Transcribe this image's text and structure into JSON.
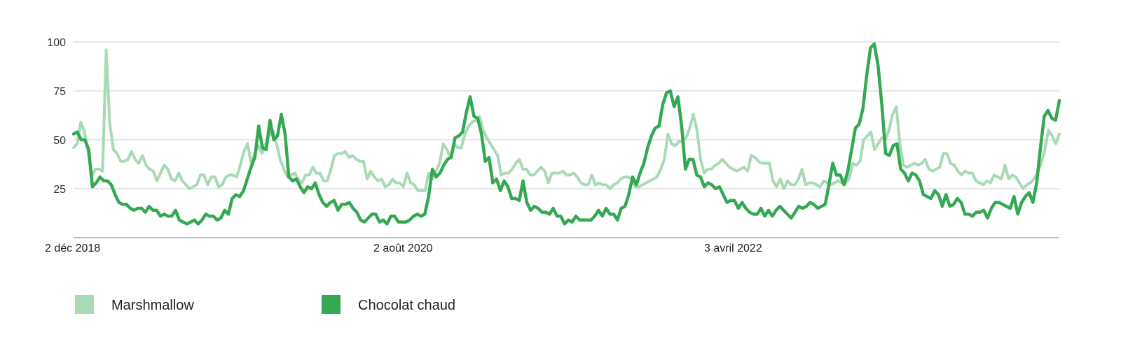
{
  "chart_data": {
    "type": "line",
    "title": "",
    "xlabel": "",
    "ylabel": "",
    "ylim": [
      0,
      100
    ],
    "yticks": [
      25,
      50,
      75,
      100
    ],
    "grid": true,
    "legend_position": "bottom-left",
    "x_tick_labels": [
      "2 déc 2018",
      "2 août 2020",
      "3 avril 2022"
    ],
    "series": [
      {
        "name": "Marshmallow",
        "color": "#a8dab5",
        "values": [
          46,
          48,
          59,
          54,
          44,
          31,
          35,
          35,
          34,
          96,
          58,
          45,
          43,
          39,
          39,
          40,
          44,
          40,
          38,
          42,
          37,
          35,
          34,
          29,
          33,
          37,
          35,
          30,
          29,
          33,
          29,
          27,
          25,
          26,
          27,
          32,
          32,
          27,
          31,
          31,
          26,
          27,
          31,
          32,
          32,
          31,
          37,
          44,
          48,
          38,
          43,
          47,
          43,
          48,
          52,
          55,
          48,
          40,
          35,
          31,
          32,
          33,
          30,
          28,
          32,
          32,
          36,
          33,
          33,
          29,
          29,
          35,
          42,
          43,
          43,
          44,
          41,
          42,
          40,
          39,
          39,
          30,
          34,
          31,
          29,
          30,
          26,
          27,
          30,
          28,
          28,
          26,
          33,
          28,
          27,
          24,
          24,
          24,
          33,
          30,
          34,
          38,
          48,
          45,
          41,
          48,
          46,
          46,
          53,
          57,
          59,
          60,
          62,
          55,
          51,
          48,
          45,
          42,
          32,
          33,
          33,
          35,
          38,
          40,
          35,
          35,
          32,
          32,
          34,
          36,
          34,
          28,
          33,
          33,
          33,
          34,
          32,
          32,
          33,
          31,
          28,
          27,
          27,
          32,
          27,
          28,
          27,
          27,
          25,
          27,
          28,
          30,
          31,
          31,
          30,
          26,
          26,
          27,
          28,
          29,
          30,
          31,
          35,
          40,
          53,
          48,
          47,
          49,
          49,
          51,
          56,
          63,
          55,
          40,
          33,
          35,
          35,
          37,
          38,
          40,
          38,
          36,
          35,
          34,
          35,
          36,
          34,
          42,
          41,
          39,
          38,
          38,
          38,
          29,
          26,
          30,
          25,
          29,
          27,
          27,
          30,
          35,
          27,
          28,
          28,
          27,
          26,
          29,
          28,
          27,
          28,
          29,
          28,
          28,
          30,
          38,
          37,
          39,
          50,
          52,
          54,
          45,
          48,
          51,
          50,
          55,
          63,
          67,
          48,
          37,
          36,
          37,
          38,
          37,
          38,
          40,
          35,
          34,
          35,
          36,
          43,
          43,
          38,
          37,
          34,
          32,
          34,
          33,
          33,
          29,
          28,
          27,
          29,
          28,
          32,
          31,
          30,
          37,
          30,
          32,
          31,
          28,
          25,
          27,
          28,
          30,
          33,
          38,
          45,
          55,
          52,
          48,
          53
        ]
      },
      {
        "name": "Chocolat chaud",
        "color": "#34a853",
        "values": [
          53,
          54,
          50,
          50,
          45,
          26,
          28,
          31,
          29,
          29,
          27,
          22,
          18,
          17,
          17,
          15,
          14,
          15,
          15,
          13,
          16,
          14,
          14,
          11,
          12,
          11,
          11,
          14,
          9,
          8,
          7,
          8,
          9,
          7,
          9,
          12,
          11,
          11,
          9,
          10,
          14,
          12,
          20,
          22,
          21,
          24,
          30,
          36,
          41,
          57,
          46,
          45,
          60,
          50,
          52,
          63,
          53,
          31,
          29,
          30,
          26,
          23,
          26,
          25,
          28,
          22,
          18,
          16,
          18,
          19,
          14,
          17,
          17,
          18,
          15,
          13,
          9,
          8,
          10,
          12,
          12,
          8,
          9,
          7,
          11,
          11,
          8,
          8,
          8,
          9,
          11,
          12,
          11,
          12,
          21,
          35,
          31,
          33,
          37,
          40,
          41,
          51,
          52,
          54,
          64,
          72,
          62,
          61,
          53,
          39,
          41,
          28,
          30,
          24,
          29,
          26,
          20,
          20,
          19,
          29,
          18,
          14,
          16,
          15,
          13,
          13,
          12,
          15,
          11,
          11,
          7,
          9,
          8,
          11,
          9,
          9,
          9,
          9,
          11,
          14,
          11,
          15,
          12,
          12,
          9,
          15,
          16,
          22,
          31,
          27,
          33,
          38,
          46,
          52,
          56,
          57,
          68,
          74,
          75,
          67,
          72,
          57,
          35,
          40,
          40,
          32,
          31,
          26,
          28,
          27,
          25,
          26,
          22,
          18,
          19,
          19,
          15,
          18,
          15,
          13,
          12,
          12,
          15,
          11,
          14,
          11,
          14,
          16,
          14,
          12,
          10,
          13,
          16,
          15,
          16,
          18,
          17,
          15,
          16,
          17,
          27,
          38,
          32,
          32,
          27,
          34,
          45,
          56,
          58,
          66,
          83,
          97,
          99,
          88,
          68,
          43,
          42,
          47,
          48,
          35,
          33,
          29,
          33,
          32,
          29,
          22,
          21,
          20,
          24,
          22,
          16,
          22,
          16,
          17,
          20,
          18,
          12,
          12,
          11,
          13,
          13,
          14,
          10,
          15,
          18,
          18,
          17,
          16,
          15,
          21,
          12,
          18,
          21,
          23,
          18,
          28,
          46,
          62,
          65,
          61,
          60,
          70
        ]
      }
    ]
  }
}
